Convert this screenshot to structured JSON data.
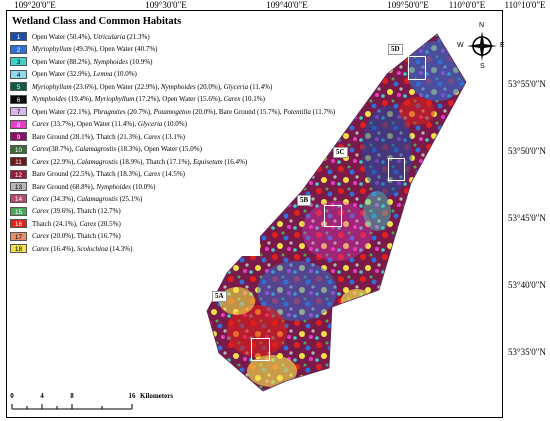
{
  "legend": {
    "title": "Wetland Class and Common Habitats",
    "items": [
      {
        "num": "1",
        "color": "#1a4fa8",
        "label_html": "Open Water (50.4%), <i>Utricularia</i> (21.3%)"
      },
      {
        "num": "2",
        "color": "#2f6fd6",
        "label_html": "<i>Myriophyllum</i> (49.3%), Open Water (40.7%)"
      },
      {
        "num": "3",
        "color": "#3fd0c8",
        "label_html": "Open Water (88.2%), <i>Nymphoides</i> (10.9%)"
      },
      {
        "num": "4",
        "color": "#8fd8f0",
        "label_html": "Open Water (32.9%), <i>Lemna</i> (10.0%)"
      },
      {
        "num": "5",
        "color": "#0e5a46",
        "label_html": "<i>Myriophyllum</i> (23.6%), Open Water (22.9%), <i>Nymphoides</i> (20.0%), <i>Glyceria</i> (11.4%)"
      },
      {
        "num": "6",
        "color": "#0a0a0a",
        "label_html": "<i>Nymphoides</i> (19.4%), <i>Myriophyllum</i> (17.2%), Open Water (15.6%), <i>Carex</i> (10.1%)"
      },
      {
        "num": "7",
        "color": "#d8b8ea",
        "label_html": "Open Water (22.1%), <i>Phragmites</i> (20.7%), <i>Potamogeton</i> (20.0%), Bare Ground (15.7%), <i>Potentilla</i> (11.7%)"
      },
      {
        "num": "8",
        "color": "#e63cc8",
        "label_html": "<i>Carex</i> (33.7%), Open Water (11.4%), <i>Glyceria</i> (10.0%)"
      },
      {
        "num": "9",
        "color": "#8a1068",
        "label_html": "Bare Ground (28.1%), Thatch (21.3%), <i>Carex</i> (13.1%)"
      },
      {
        "num": "10",
        "color": "#3a6a38",
        "label_html": "<i>Carex</i>(38.7%), <i>Calamagrostis</i> (18.3%), Open Water (15.0%)"
      },
      {
        "num": "11",
        "color": "#6a1818",
        "label_html": "<i>Carex</i> (22.9%), <i>Calamagrostis</i> (18.9%), Thatch (17.1%), <i>Equisetum</i> (16.4%)"
      },
      {
        "num": "12",
        "color": "#9a1a3a",
        "label_html": "Bare Ground (22.5%), Thatch (18.3%), <i>Carex</i> (14.5%)"
      },
      {
        "num": "13",
        "color": "#b8b8b8",
        "label_html": "Bare Ground (68.8%), <i>Nymphoides</i> (10.0%)"
      },
      {
        "num": "14",
        "color": "#b84a6a",
        "label_html": "<i>Carex</i> (34.3%), <i>Calamagrostis</i> (25.1%)"
      },
      {
        "num": "15",
        "color": "#4aa85a",
        "label_html": "<i>Carex</i> (39.6%), Thatch (12.7%)"
      },
      {
        "num": "16",
        "color": "#e0201a",
        "label_html": "Thatch (24.1%), <i>Carex</i> (20.5%)"
      },
      {
        "num": "17",
        "color": "#e8906a",
        "label_html": "<i>Carex</i> (20.0%), Thatch (16.7%)"
      },
      {
        "num": "18",
        "color": "#f2e24a",
        "label_html": "<i>Carex</i> (16.4%), <i>Scolochloa</i> (14.3%)"
      }
    ]
  },
  "top_ticks": [
    {
      "label": "109°20'0\"E",
      "pos": 29
    },
    {
      "label": "109°30'0\"E",
      "pos": 160
    },
    {
      "label": "109°40'0\"E",
      "pos": 281
    },
    {
      "label": "109°50'0\"E",
      "pos": 402
    },
    {
      "label": "110°0'0\"E",
      "pos": 500
    },
    {
      "label": "110°10'0\"E",
      "pos": 620
    }
  ],
  "right_ticks": [
    {
      "label": "53°55'0\"N"
    },
    {
      "label": "53°50'0\"N"
    },
    {
      "label": "53°45'0\"N"
    },
    {
      "label": "53°40'0\"N"
    },
    {
      "label": "53°35'0\"N"
    }
  ],
  "sites": [
    {
      "label": "5D"
    },
    {
      "label": "5C"
    },
    {
      "label": "5B"
    },
    {
      "label": "5A"
    }
  ],
  "scale": {
    "ticks": [
      "0",
      "4",
      "8",
      "",
      "16"
    ],
    "unit": "Kilometers"
  },
  "north_arrow": {
    "n": "N",
    "s": "S",
    "e": "E",
    "w": "W"
  }
}
